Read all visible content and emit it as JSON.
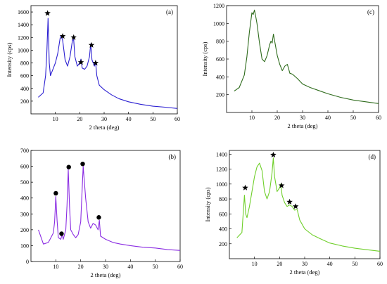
{
  "chart_data": [
    {
      "panel": "(a)",
      "type": "line",
      "color": "#2b1fd1",
      "xlabel": "2 theta (deg)",
      "ylabel": "Intensity (cps)",
      "xlim": [
        0,
        60
      ],
      "ylim": [
        0,
        1700
      ],
      "xticks": [
        10,
        20,
        30,
        40,
        50,
        60
      ],
      "yticks": [
        200,
        400,
        600,
        800,
        1000,
        1200,
        1400,
        1600
      ],
      "grid": false,
      "series": [
        {
          "x": [
            3,
            5,
            6,
            6.5,
            7,
            7.5,
            8,
            9,
            10,
            11,
            12,
            12.5,
            13,
            14,
            15,
            16,
            17,
            17.5,
            18,
            19,
            20,
            20.5,
            21,
            22,
            23,
            24,
            24.5,
            25,
            26,
            26.5,
            27,
            28,
            30,
            33,
            36,
            40,
            45,
            50,
            55,
            60
          ],
          "y": [
            260,
            330,
            600,
            950,
            1500,
            800,
            600,
            700,
            800,
            950,
            1200,
            1230,
            1150,
            850,
            750,
            900,
            1150,
            1170,
            900,
            750,
            800,
            860,
            720,
            700,
            750,
            900,
            1100,
            850,
            750,
            800,
            600,
            450,
            380,
            300,
            240,
            190,
            150,
            120,
            105,
            85
          ]
        }
      ],
      "markers": {
        "symbol": "star",
        "x": [
          6.8,
          13,
          17.5,
          20.5,
          24.8,
          26.5
        ],
        "y": [
          1580,
          1220,
          1200,
          810,
          1080,
          800
        ]
      }
    },
    {
      "panel": "(b)",
      "type": "line",
      "color": "#8a2be2",
      "xlabel": "2 theta (deg)",
      "ylabel": "",
      "xlim": [
        0,
        60
      ],
      "ylim": [
        0,
        700
      ],
      "xticks": [
        10,
        20,
        30,
        40,
        50,
        60
      ],
      "yticks": [
        0,
        100,
        200,
        300,
        400,
        500,
        600,
        700
      ],
      "grid": false,
      "series": [
        {
          "x": [
            3,
            5,
            7,
            8,
            9,
            9.5,
            10,
            10.5,
            11,
            12,
            12.5,
            13,
            14,
            14.5,
            15,
            15.5,
            16,
            17,
            18,
            19,
            20,
            20.5,
            21,
            22,
            23,
            24,
            25,
            26,
            27,
            27.5,
            28,
            30,
            33,
            36,
            40,
            45,
            50,
            55,
            60
          ],
          "y": [
            200,
            110,
            120,
            150,
            180,
            250,
            410,
            260,
            150,
            140,
            170,
            140,
            200,
            350,
            580,
            350,
            200,
            170,
            150,
            170,
            250,
            420,
            600,
            400,
            250,
            210,
            240,
            230,
            200,
            260,
            160,
            140,
            120,
            110,
            100,
            90,
            85,
            75,
            70
          ]
        }
      ],
      "markers": {
        "symbol": "circle",
        "x": [
          10,
          12.3,
          15.2,
          20.8,
          27.3
        ],
        "y": [
          430,
          175,
          595,
          615,
          278
        ]
      }
    },
    {
      "panel": "(c)",
      "type": "line",
      "color": "#2e6b1c",
      "xlabel": "2 theta (deg)",
      "ylabel": "Intensity (cps)",
      "xlim": [
        0,
        60
      ],
      "ylim": [
        0,
        1200
      ],
      "xticks": [
        10,
        20,
        30,
        40,
        50,
        60
      ],
      "yticks": [
        200,
        400,
        600,
        800,
        1000,
        1200
      ],
      "grid": false,
      "series": [
        {
          "x": [
            3,
            5,
            7,
            8,
            9,
            10,
            10.5,
            11,
            11.5,
            12,
            13,
            14,
            15,
            16,
            17,
            17.5,
            18,
            18.5,
            19,
            20,
            21,
            22,
            23,
            24,
            25,
            26,
            28,
            30,
            33,
            36,
            40,
            45,
            50,
            55,
            60
          ],
          "y": [
            240,
            280,
            420,
            620,
            900,
            1120,
            1100,
            1150,
            1080,
            1000,
            780,
            600,
            570,
            640,
            760,
            800,
            780,
            880,
            800,
            640,
            540,
            470,
            520,
            540,
            440,
            430,
            380,
            320,
            280,
            250,
            210,
            170,
            140,
            120,
            100
          ]
        }
      ]
    },
    {
      "panel": "(d)",
      "type": "line",
      "color": "#6fcf2a",
      "xlabel": "2 theta (deg)",
      "ylabel": "Intensity (cps)",
      "xlim": [
        0,
        60
      ],
      "ylim": [
        0,
        1450
      ],
      "xticks": [
        10,
        20,
        30,
        40,
        50,
        60
      ],
      "yticks": [
        200,
        400,
        600,
        800,
        1000,
        1200,
        1400
      ],
      "grid": false,
      "series": [
        {
          "x": [
            3,
            5,
            6,
            6.5,
            7,
            8,
            9,
            10,
            11,
            12,
            13,
            14,
            15,
            16,
            17,
            17.5,
            18,
            19,
            20,
            20.5,
            21,
            22,
            23,
            24,
            25,
            26,
            27,
            28,
            30,
            33,
            36,
            40,
            45,
            50,
            55,
            60
          ],
          "y": [
            280,
            350,
            850,
            600,
            550,
            700,
            900,
            1100,
            1230,
            1280,
            1180,
            900,
            800,
            900,
            1150,
            1350,
            1100,
            900,
            950,
            1000,
            850,
            750,
            700,
            720,
            700,
            650,
            660,
            520,
            400,
            320,
            270,
            210,
            170,
            140,
            120,
            100
          ]
        }
      ],
      "markers": {
        "symbol": "star",
        "x": [
          6.3,
          17.5,
          20.8,
          24,
          26.4
        ],
        "y": [
          950,
          1390,
          980,
          760,
          700
        ]
      }
    }
  ]
}
